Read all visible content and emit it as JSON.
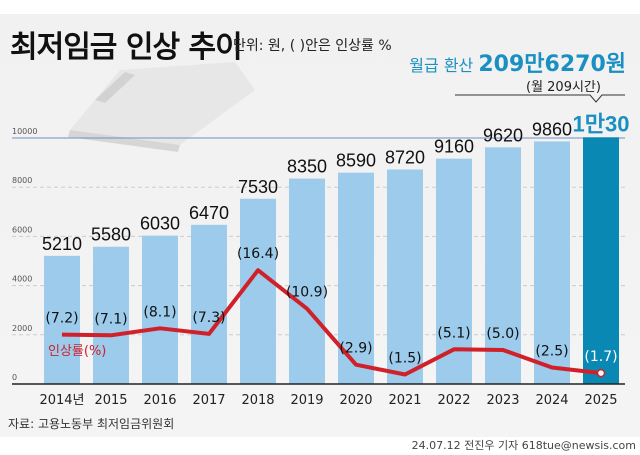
{
  "header": {
    "title": "최저임금 인상 추이",
    "unit_note": "단위: 원, ( )안은 인상률 %",
    "monthly_label": "월급 환산",
    "monthly_value": "209만6270원",
    "monthly_hours": "(월 209시간)",
    "highlight_label": "1만30"
  },
  "chart_data": {
    "type": "bar",
    "categories": [
      "2014년",
      "2015",
      "2016",
      "2017",
      "2018",
      "2019",
      "2020",
      "2021",
      "2022",
      "2023",
      "2024",
      "2025"
    ],
    "series": [
      {
        "values": [
          5210,
          5580,
          6030,
          6470,
          7530,
          8350,
          8590,
          8720,
          9160,
          9620,
          9860,
          10030
        ],
        "labels": [
          "5210",
          "5580",
          "6030",
          "6470",
          "7530",
          "8350",
          "8590",
          "8720",
          "9160",
          "9620",
          "9860",
          "1만30"
        ]
      },
      {
        "name": "인상률(%)",
        "type": "line",
        "values": [
          7.2,
          7.1,
          8.1,
          7.3,
          16.4,
          10.9,
          2.9,
          1.5,
          5.1,
          5.0,
          2.5,
          1.7
        ],
        "labels": [
          "(7.2)",
          "(7.1)",
          "(8.1)",
          "(7.3)",
          "(16.4)",
          "(10.9)",
          "(2.9)",
          "(1.5)",
          "(5.1)",
          "(5.0)",
          "(2.5)",
          "(1.7)"
        ]
      }
    ],
    "yticks": [
      "0",
      "2000",
      "4000",
      "6000",
      "8000",
      "10000"
    ],
    "ylim": [
      0,
      10000
    ],
    "grid": true,
    "colors": {
      "bar": "#9ccbec",
      "highlight_bar": "#0a88b4",
      "line": "#d0202a",
      "accent": "#1a8fc2"
    }
  },
  "footer": {
    "source": "자료: 고용노동부 최저임금위원회",
    "credit": "24.07.12 전진우 기자 618tue@newsis.com"
  }
}
